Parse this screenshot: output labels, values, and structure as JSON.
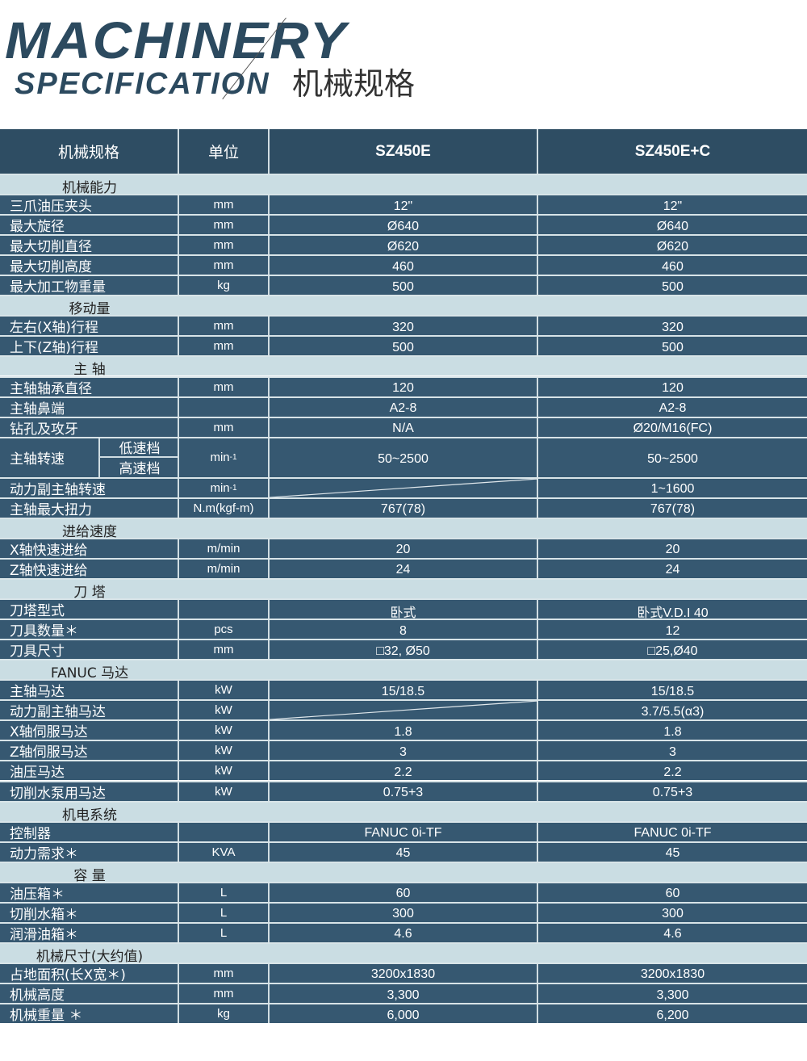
{
  "header": {
    "logo_line1": "MACHINERY",
    "logo_line2": "SPECIFICATION",
    "title_cn": "机械规格"
  },
  "columns": [
    "机械规格",
    "单位",
    "SZ450E",
    "SZ450E+C"
  ],
  "colors": {
    "header_bg": "#2e4d63",
    "row_bg": "#365871",
    "section_bg": "#cadde3"
  },
  "rows": [
    {
      "section": "机械能力"
    },
    {
      "label": "三爪油压夹头",
      "unit": "mm",
      "v1": "12\"",
      "v2": "12\""
    },
    {
      "label": "最大旋径",
      "unit": "mm",
      "v1": "Ø640",
      "v2": "Ø640"
    },
    {
      "label": "最大切削直径",
      "unit": "mm",
      "v1": "Ø620",
      "v2": "Ø620"
    },
    {
      "label": "最大切削高度",
      "unit": "mm",
      "v1": "460",
      "v2": "460"
    },
    {
      "label": "最大加工物重量",
      "unit": "kg",
      "v1": "500",
      "v2": "500"
    },
    {
      "section": "移动量"
    },
    {
      "label": "左右(X轴)行程",
      "unit": "mm",
      "v1": "320",
      "v2": "320"
    },
    {
      "label": "上下(Z轴)行程",
      "unit": "mm",
      "v1": "500",
      "v2": "500"
    },
    {
      "section": "主  轴"
    },
    {
      "label": "主轴轴承直径",
      "unit": "mm",
      "v1": "120",
      "v2": "120"
    },
    {
      "label": "主轴鼻端",
      "unit": "",
      "v1": "A2-8",
      "v2": "A2-8"
    },
    {
      "label": "钻孔及攻牙",
      "unit": "mm",
      "v1": "N/A",
      "v2": "Ø20/M16(FC)"
    },
    {
      "label": "主轴转速",
      "sub": [
        "低速档",
        "高速档"
      ],
      "unit": "min",
      "unit_sup": "-1",
      "v1": "50~2500",
      "v2": "50~2500",
      "double": true
    },
    {
      "label": "动力副主轴转速",
      "unit": "min",
      "unit_sup": "-1",
      "v1": "",
      "v2": "1~1600",
      "diag": true
    },
    {
      "label": "主轴最大扭力",
      "unit": "N.m(kgf-m)",
      "v1": "767(78)",
      "v2": "767(78)"
    },
    {
      "section": "进给速度"
    },
    {
      "label": "X轴快速进给",
      "unit": "m/min",
      "v1": "20",
      "v2": "20"
    },
    {
      "label": "Z轴快速进给",
      "unit": "m/min",
      "v1": "24",
      "v2": "24"
    },
    {
      "section": "刀  塔"
    },
    {
      "label": "刀塔型式",
      "unit": "",
      "v1": "卧式",
      "v2": "卧式V.D.I 40"
    },
    {
      "label": "刀具数量＊",
      "unit": "pcs",
      "v1": "8",
      "v2": "12"
    },
    {
      "label": "刀具尺寸",
      "unit": "mm",
      "v1": "□32, Ø50",
      "v2": "□25,Ø40"
    },
    {
      "section": "FANUC 马达"
    },
    {
      "label": "主轴马达",
      "unit": "kW",
      "v1": "15/18.5",
      "v2": "15/18.5"
    },
    {
      "label": "动力副主轴马达",
      "unit": "kW",
      "v1": "",
      "v2": "3.7/5.5(α3)",
      "diag": true
    },
    {
      "label": "X轴伺服马达",
      "unit": "kW",
      "v1": "1.8",
      "v2": "1.8"
    },
    {
      "label": "Z轴伺服马达",
      "unit": "kW",
      "v1": "3",
      "v2": "3"
    },
    {
      "label": "油压马达",
      "unit": "kW",
      "v1": "2.2",
      "v2": "2.2"
    },
    {
      "label": "切削水泵用马达",
      "unit": "kW",
      "v1": "0.75+3",
      "v2": "0.75+3"
    },
    {
      "section": "机电系统"
    },
    {
      "label": "控制器",
      "unit": "",
      "v1": "FANUC 0i-TF",
      "v2": "FANUC 0i-TF"
    },
    {
      "label": "动力需求＊",
      "unit": "KVA",
      "v1": "45",
      "v2": "45"
    },
    {
      "section": "容  量"
    },
    {
      "label": "油压箱＊",
      "unit": "L",
      "v1": "60",
      "v2": "60"
    },
    {
      "label": "切削水箱＊",
      "unit": "L",
      "v1": "300",
      "v2": "300"
    },
    {
      "label": "润滑油箱＊",
      "unit": "L",
      "v1": "4.6",
      "v2": "4.6"
    },
    {
      "section": "机械尺寸(大约值)"
    },
    {
      "label": "占地面积(长X宽＊)",
      "unit": "mm",
      "v1": "3200x1830",
      "v2": "3200x1830"
    },
    {
      "label": "机械高度",
      "unit": "mm",
      "v1": "3,300",
      "v2": "3,300"
    },
    {
      "label": "机械重量 ＊",
      "unit": "kg",
      "v1": "6,000",
      "v2": "6,200"
    }
  ]
}
